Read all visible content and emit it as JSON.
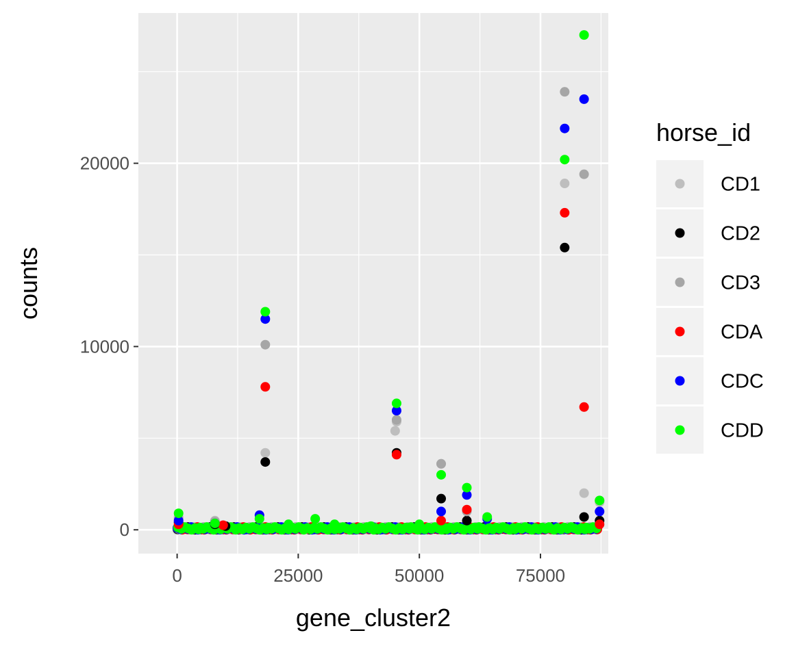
{
  "chart_data": {
    "type": "scatter",
    "xlabel": "gene_cluster2",
    "ylabel": "counts",
    "xlim": [
      -8000,
      89000
    ],
    "ylim": [
      -1300,
      28200
    ],
    "x_ticks": [
      0,
      25000,
      50000,
      75000
    ],
    "x_tick_labels": [
      "0",
      "25000",
      "50000",
      "75000"
    ],
    "y_ticks": [
      0,
      10000,
      20000
    ],
    "y_tick_labels": [
      "0",
      "10000",
      "20000"
    ],
    "grid": true,
    "legend": {
      "title": "horse_id",
      "placement": "right"
    },
    "series": [
      {
        "name": "CD1",
        "color": "#bebebe",
        "x": [
          300,
          7800,
          17000,
          18200,
          45000,
          45300,
          54500,
          80000,
          84000,
          87200
        ],
        "y": [
          700,
          500,
          600,
          4200,
          5400,
          5900,
          3600,
          18900,
          2000,
          1500
        ]
      },
      {
        "name": "CD2",
        "color": "#000000",
        "x": [
          300,
          7800,
          10000,
          18200,
          45300,
          54500,
          59800,
          80000,
          84000,
          87200
        ],
        "y": [
          400,
          300,
          200,
          3700,
          4200,
          1700,
          500,
          15400,
          700,
          500
        ]
      },
      {
        "name": "CD3",
        "color": "#a6a6a6",
        "x": [
          300,
          7800,
          18200,
          45300,
          54500,
          59800,
          80000,
          84000,
          87200
        ],
        "y": [
          600,
          450,
          10100,
          6000,
          3600,
          1000,
          23900,
          19400,
          1600
        ]
      },
      {
        "name": "CDA",
        "color": "#ff0000",
        "x": [
          300,
          9500,
          18200,
          45300,
          54500,
          59800,
          80000,
          84000,
          87200
        ],
        "y": [
          300,
          250,
          7800,
          4100,
          500,
          1100,
          17300,
          6700,
          300
        ]
      },
      {
        "name": "CDC",
        "color": "#0000ff",
        "x": [
          300,
          7800,
          17000,
          18200,
          45300,
          54500,
          59800,
          64000,
          80000,
          84000,
          87200
        ],
        "y": [
          500,
          350,
          800,
          11500,
          6500,
          1000,
          1900,
          600,
          21900,
          23500,
          1000
        ]
      },
      {
        "name": "CDD",
        "color": "#00ff00",
        "x": [
          300,
          7800,
          17000,
          18200,
          23000,
          28500,
          32500,
          40000,
          45300,
          50000,
          54500,
          59800,
          64000,
          80000,
          84000,
          87200
        ],
        "y": [
          900,
          350,
          600,
          11900,
          300,
          600,
          300,
          200,
          6900,
          300,
          3000,
          2300,
          700,
          20200,
          27000,
          1600
        ]
      }
    ]
  }
}
